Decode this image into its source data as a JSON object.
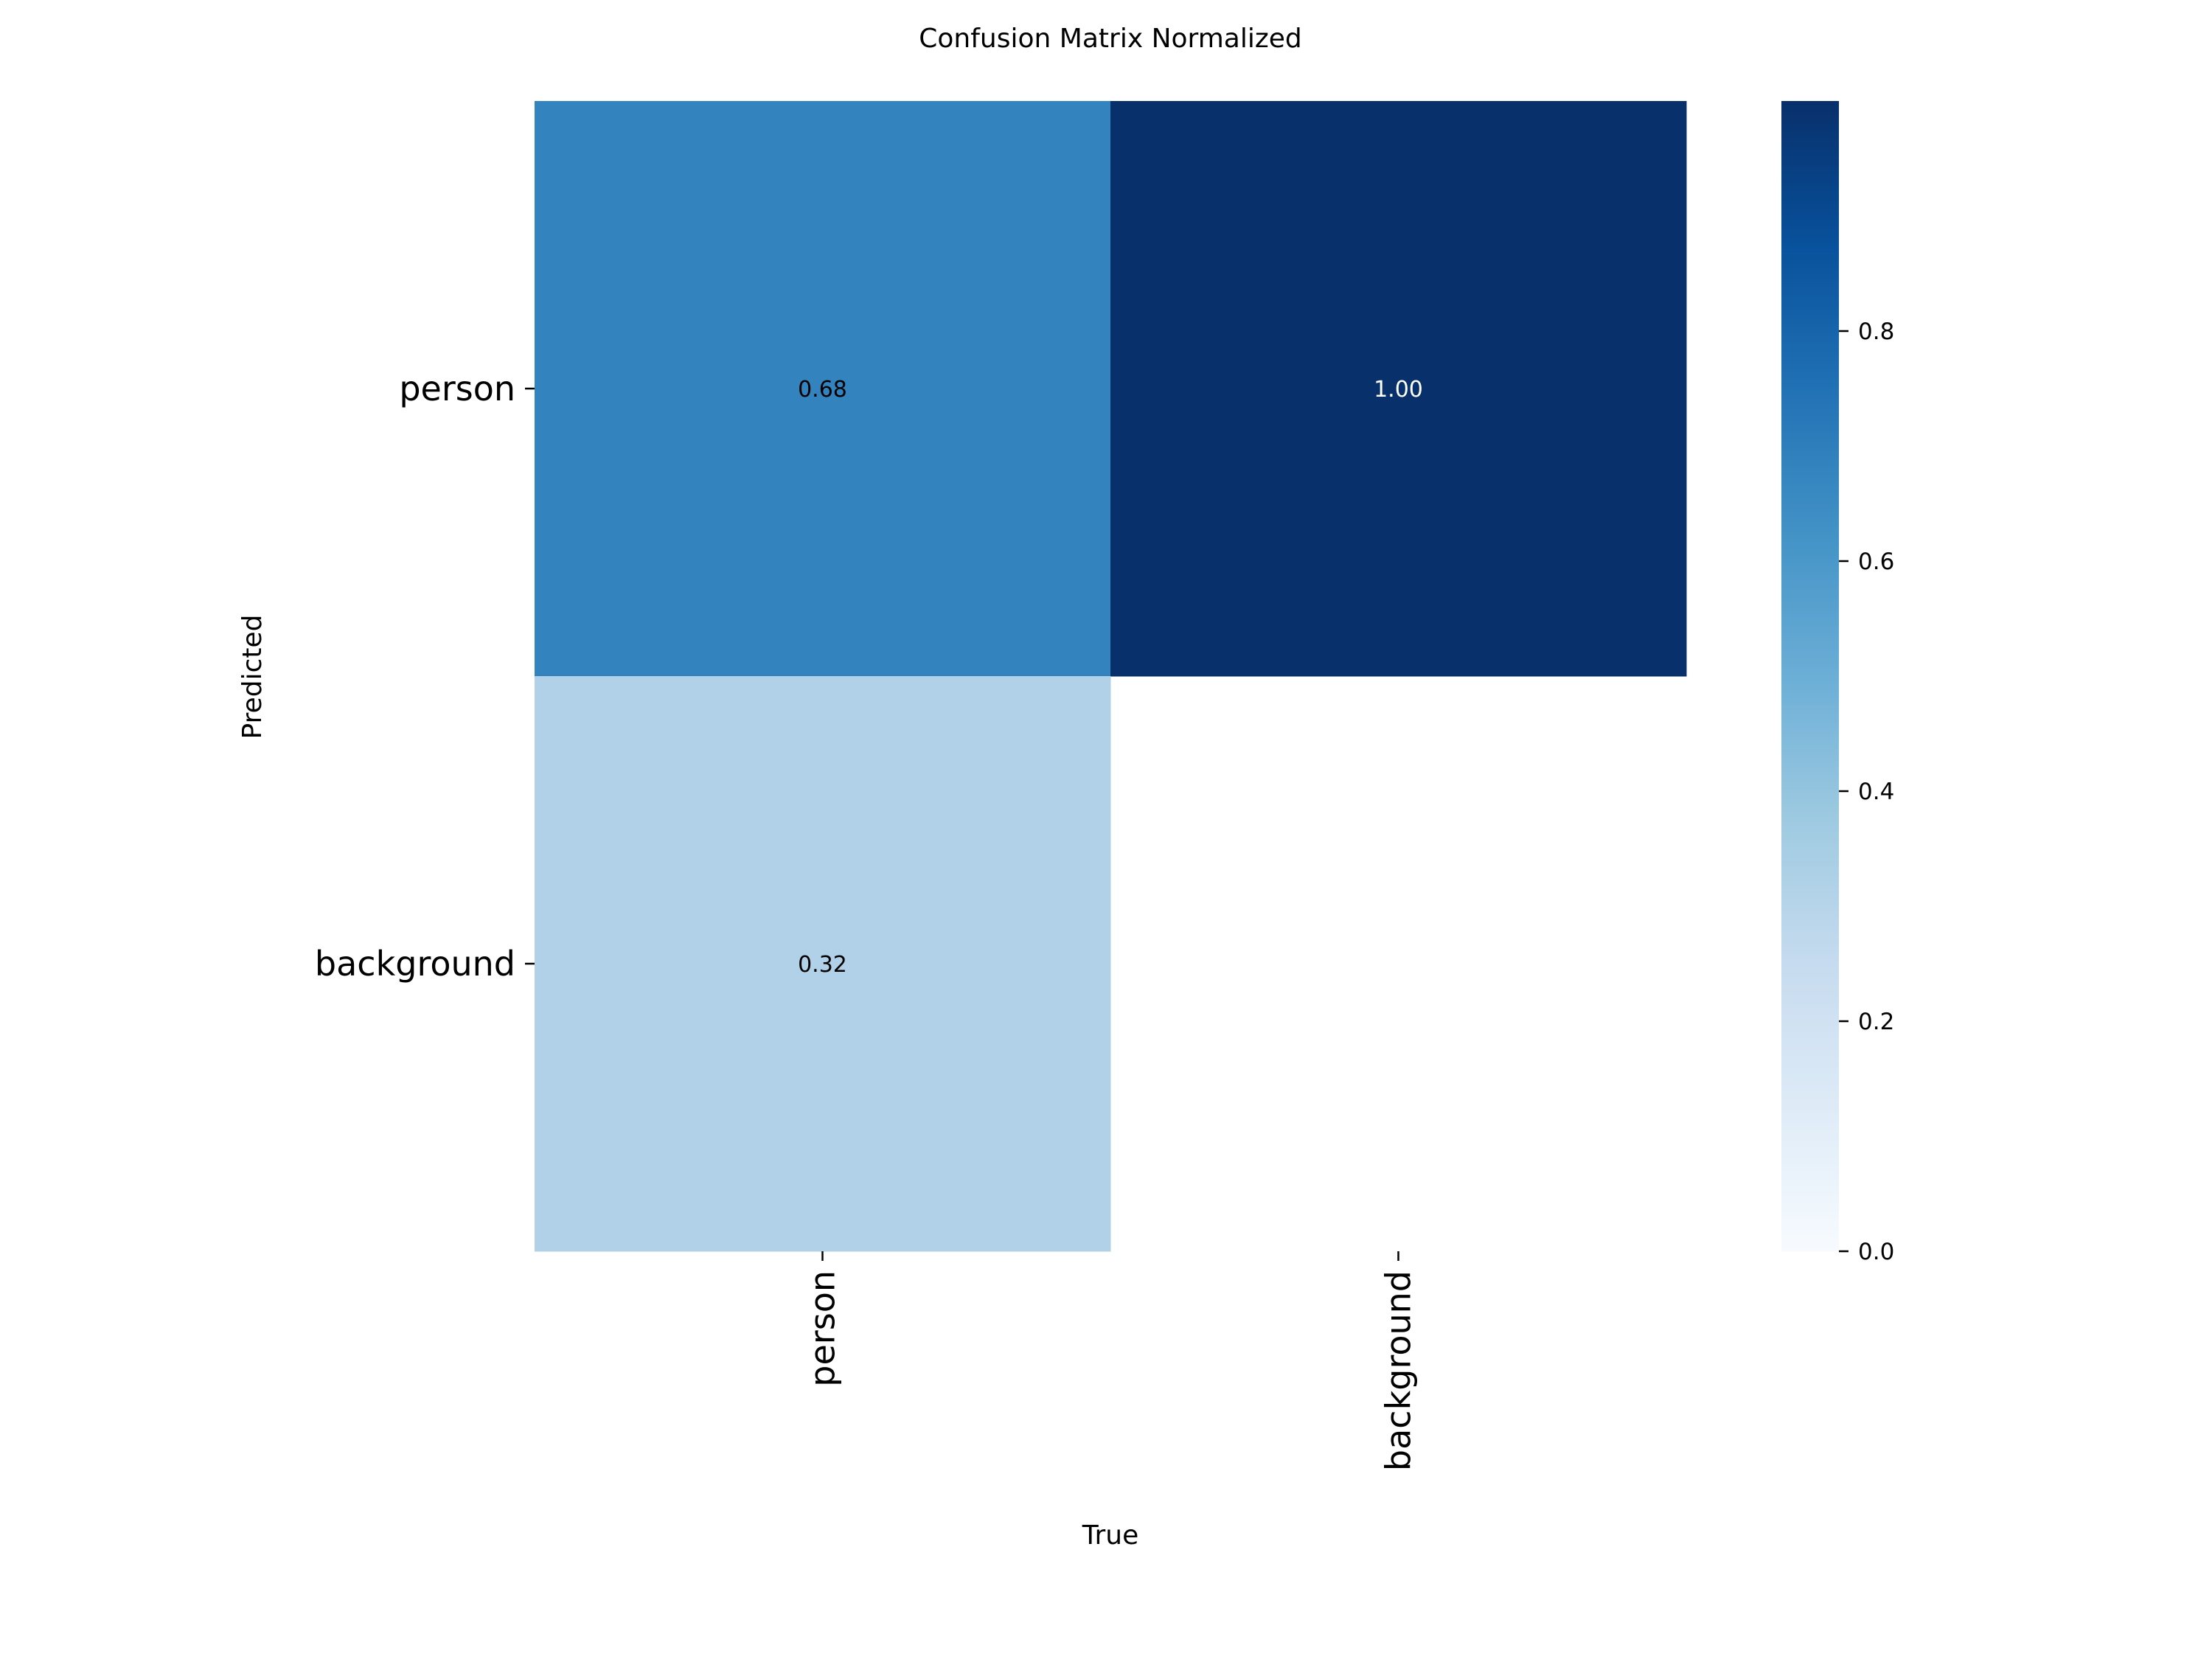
{
  "chart_data": {
    "type": "heatmap",
    "title": "Confusion Matrix Normalized",
    "xlabel": "True",
    "ylabel": "Predicted",
    "x_categories": [
      "person",
      "background"
    ],
    "y_categories": [
      "person",
      "background"
    ],
    "values": [
      [
        0.68,
        1.0
      ],
      [
        0.32,
        null
      ]
    ],
    "value_labels": [
      [
        "0.68",
        "1.00"
      ],
      [
        "0.32",
        ""
      ]
    ],
    "colormap": "Blues",
    "vmin": 0.0,
    "vmax": 1.0,
    "colorbar_ticks": [
      0.0,
      0.2,
      0.4,
      0.6,
      0.8
    ],
    "colorbar_tick_labels": [
      "0.0",
      "0.2",
      "0.4",
      "0.6",
      "0.8"
    ],
    "colors": {
      "cell_0_0": "#3282be",
      "cell_0_1": "#08306b",
      "cell_1_0": "#b2d2e8"
    }
  }
}
